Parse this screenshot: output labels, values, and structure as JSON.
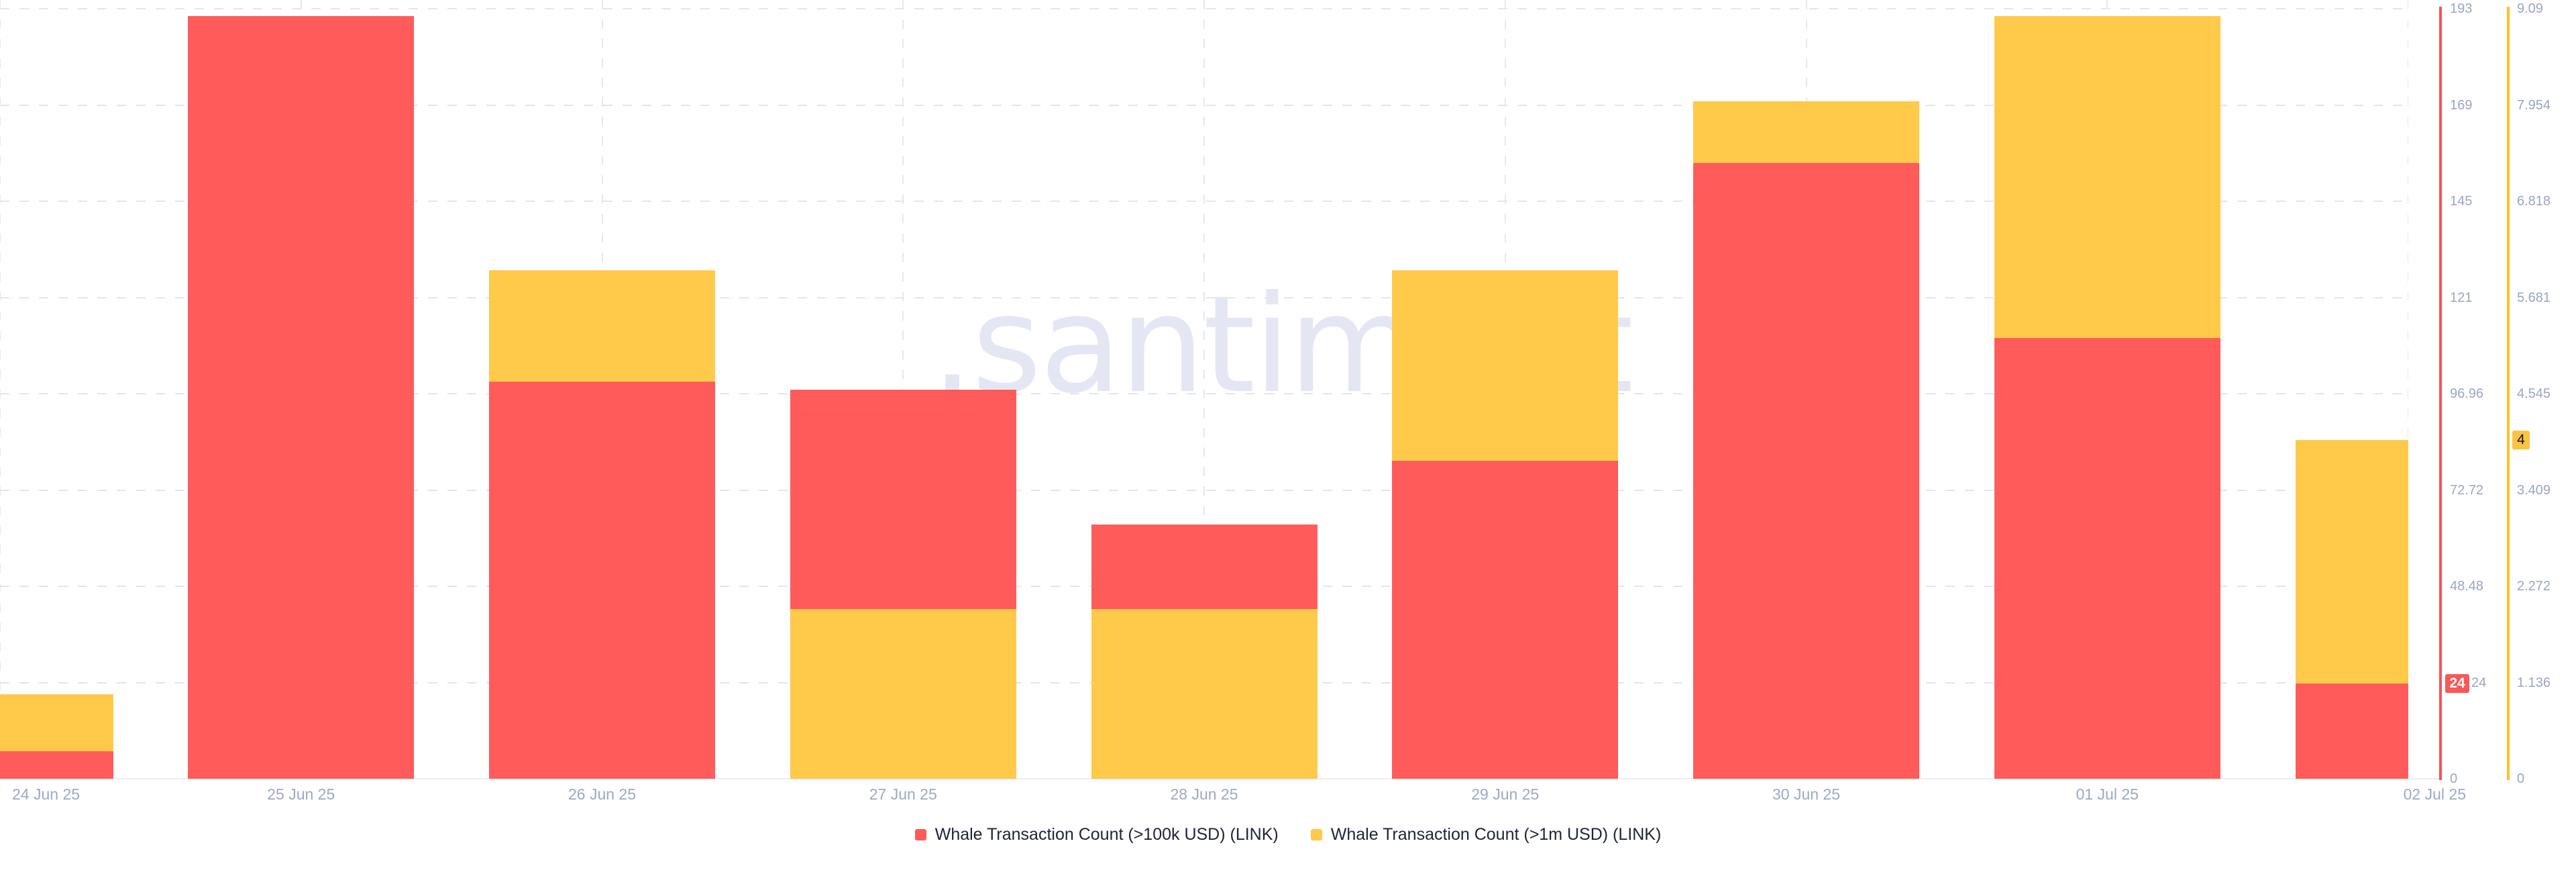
{
  "watermark": ".santiment",
  "colors": {
    "background": "#ffffff",
    "red_bar": "#FF5B5B",
    "red_axis_line": "#FA5252",
    "yellow_bar": "#FFC94A",
    "yellow_axis_line": "#FFC226",
    "tick_label": "#9AA5C4",
    "date_label": "#9DA8C6",
    "legend_text": "#20243A",
    "gridline_dashed": "#E0E5F0",
    "baseline": "#EBEEF6",
    "watermark_text": "#E4E7F3",
    "badge_red_bg": "#FB5757",
    "badge_red_text": "#FFFFFF",
    "badge_yellow_bg": "#FBC440",
    "badge_yellow_text": "#14161F"
  },
  "chart_data": {
    "type": "bar",
    "title": "",
    "categories": [
      "24 Jun 25",
      "25 Jun 25",
      "26 Jun 25",
      "27 Jun 25",
      "28 Jun 25",
      "29 Jun 25",
      "30 Jun 25",
      "01 Jul 25",
      "02 Jul 25"
    ],
    "series": [
      {
        "name": "Whale Transaction Count (>100k USD) (LINK)",
        "color": "#FF5B5B",
        "values": [
          7,
          192,
          100,
          98,
          64,
          80,
          155,
          111,
          24
        ],
        "axis_side": "right-inner-red",
        "axis_max": 193.92,
        "ylim": [
          0,
          193.92
        ],
        "ticks": [
          "193",
          "169",
          "145",
          "121",
          "96.96",
          "72.72",
          "48.48",
          "24",
          "0"
        ],
        "latest_badge": "24"
      },
      {
        "name": "Whale Transaction Count (>1m USD) (LINK)",
        "color": "#FFC94A",
        "values": [
          1,
          0,
          6,
          2,
          2,
          6,
          8,
          9,
          4
        ],
        "axis_side": "right-outer-yellow",
        "axis_max": 9.09,
        "ylim": [
          0,
          9.09
        ],
        "ticks": [
          "9.09",
          "7.954",
          "6.818",
          "5.681",
          "4.545",
          "3.409",
          "2.272",
          "1.136",
          "0"
        ],
        "latest_badge": "4"
      }
    ],
    "legend_position": "bottom-center",
    "grid": "dashed horizontal and vertical gridlines",
    "overlap_mode": "dual-axis overlaid bars anchored at zero, shorter bar drawn in front"
  }
}
